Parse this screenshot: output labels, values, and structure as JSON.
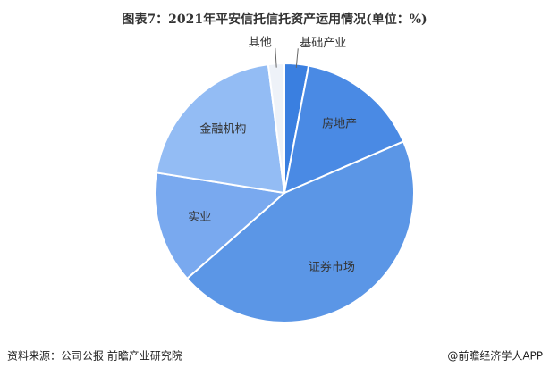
{
  "chart_data": {
    "type": "pie",
    "title": "图表7：2021年平安信托信托资产运用情况(单位：%)",
    "categories": [
      "基础产业",
      "房地产",
      "证券市场",
      "实业",
      "金融机构",
      "其他"
    ],
    "values": [
      3,
      15.5,
      45,
      14,
      20.5,
      2
    ],
    "colors": [
      "#3a7fe0",
      "#4a8ae4",
      "#5b96e6",
      "#79a9ef",
      "#93bcf4",
      "#eef2f8"
    ],
    "source": "资料来源：公司公报 前瞻产业研究院",
    "credit": "@前瞻经济学人APP"
  }
}
